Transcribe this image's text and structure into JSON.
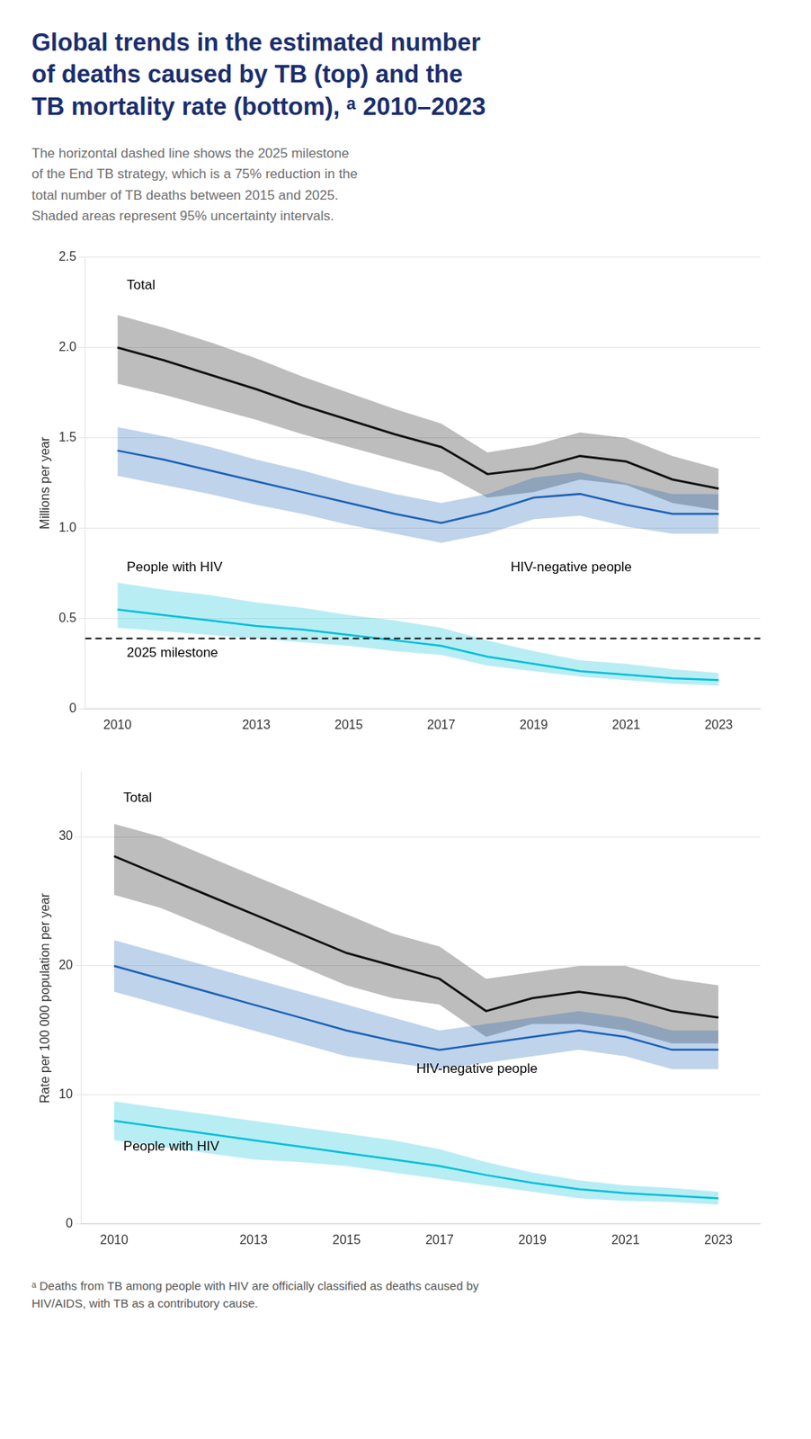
{
  "title": "Global trends in the estimated number\nof deaths caused by TB (top) and the\nTB mortality rate (bottom), ᵃ 2010–2023",
  "subtitle": "The horizontal dashed line shows the 2025 milestone\nof the End TB strategy, which is a 75% reduction in the\ntotal number of TB deaths between 2015 and 2025.\nShaded areas represent 95% uncertainty intervals.",
  "footnote": "ᵃ Deaths from TB among people with HIV are officially classified as deaths caused by\nHIV/AIDS, with TB as a contributory cause.",
  "chart_data": [
    {
      "type": "line",
      "x": [
        2010,
        2011,
        2012,
        2013,
        2014,
        2015,
        2016,
        2017,
        2018,
        2019,
        2020,
        2021,
        2022,
        2023
      ],
      "xlim": [
        2009.3,
        2023.9
      ],
      "xticks": [
        2010,
        2013,
        2015,
        2017,
        2019,
        2021,
        2023
      ],
      "ylim": [
        0,
        2.5
      ],
      "yticks": [
        0,
        0.5,
        {
          "value": 1.0,
          "label": "1.0"
        },
        1.5,
        {
          "value": 2.0,
          "label": "2.0"
        },
        2.5
      ],
      "y_label": "Millions per year",
      "grid": "y",
      "series": [
        {
          "color": "#111111",
          "values": [
            2.0,
            1.93,
            1.85,
            1.77,
            1.68,
            1.6,
            1.52,
            1.45,
            1.3,
            1.33,
            1.4,
            1.37,
            1.27,
            1.22
          ],
          "lower": [
            1.8,
            1.74,
            1.67,
            1.6,
            1.52,
            1.45,
            1.38,
            1.31,
            1.17,
            1.2,
            1.27,
            1.24,
            1.14,
            1.1
          ],
          "upper": [
            2.18,
            2.11,
            2.03,
            1.94,
            1.84,
            1.75,
            1.66,
            1.58,
            1.42,
            1.46,
            1.53,
            1.5,
            1.4,
            1.33
          ]
        },
        {
          "color": "#1a62b7",
          "values": [
            1.43,
            1.38,
            1.32,
            1.26,
            1.2,
            1.14,
            1.08,
            1.03,
            1.09,
            1.17,
            1.19,
            1.13,
            1.08,
            1.08
          ],
          "lower": [
            1.29,
            1.24,
            1.19,
            1.13,
            1.08,
            1.02,
            0.97,
            0.92,
            0.97,
            1.05,
            1.07,
            1.01,
            0.97,
            0.97
          ],
          "upper": [
            1.56,
            1.51,
            1.45,
            1.38,
            1.32,
            1.25,
            1.19,
            1.14,
            1.19,
            1.28,
            1.31,
            1.25,
            1.19,
            1.19
          ]
        },
        {
          "color": "#00c0d8",
          "values": [
            0.55,
            0.52,
            0.49,
            0.46,
            0.44,
            0.41,
            0.38,
            0.35,
            0.29,
            0.25,
            0.21,
            0.19,
            0.17,
            0.16
          ],
          "lower": [
            0.45,
            0.43,
            0.41,
            0.39,
            0.37,
            0.35,
            0.32,
            0.3,
            0.24,
            0.21,
            0.18,
            0.16,
            0.14,
            0.13
          ],
          "upper": [
            0.7,
            0.66,
            0.63,
            0.59,
            0.56,
            0.52,
            0.49,
            0.45,
            0.38,
            0.32,
            0.27,
            0.25,
            0.22,
            0.2
          ]
        }
      ],
      "hlines": [
        {
          "y": 0.39,
          "color": "#111111",
          "line_style": "dashed"
        }
      ],
      "annotations": [
        {
          "text": "Total",
          "x": 2010.2,
          "y": 2.38
        },
        {
          "text": "People with HIV",
          "x": 2010.2,
          "y": 0.82
        },
        {
          "text": "HIV-negative people",
          "x": 2018.5,
          "y": 0.82
        },
        {
          "text": "2025 milestone",
          "x": 2010.2,
          "y": 0.345
        }
      ]
    },
    {
      "type": "line",
      "x": [
        2010,
        2011,
        2012,
        2013,
        2014,
        2015,
        2016,
        2017,
        2018,
        2019,
        2020,
        2021,
        2022,
        2023
      ],
      "xlim": [
        2009.3,
        2023.9
      ],
      "xticks": [
        2010,
        2013,
        2015,
        2017,
        2019,
        2021,
        2023
      ],
      "ylim": [
        0,
        35
      ],
      "yticks": [
        0,
        10,
        20,
        30
      ],
      "y_label": "Rate per 100 000 population per year",
      "grid": "y",
      "series": [
        {
          "color": "#111111",
          "values": [
            28.5,
            27.0,
            25.5,
            24.0,
            22.5,
            21.0,
            20.0,
            19.0,
            16.5,
            17.5,
            18.0,
            17.5,
            16.5,
            16.0
          ],
          "lower": [
            25.5,
            24.5,
            23.0,
            21.5,
            20.0,
            18.5,
            17.5,
            17.0,
            14.5,
            15.5,
            15.5,
            15.0,
            14.0,
            14.0
          ],
          "upper": [
            31.0,
            30.0,
            28.5,
            27.0,
            25.5,
            24.0,
            22.5,
            21.5,
            19.0,
            19.5,
            20.0,
            20.0,
            19.0,
            18.5
          ]
        },
        {
          "color": "#1a62b7",
          "values": [
            20.0,
            19.0,
            18.0,
            17.0,
            16.0,
            15.0,
            14.2,
            13.5,
            14.0,
            14.5,
            15.0,
            14.5,
            13.5,
            13.5
          ],
          "lower": [
            18.0,
            17.0,
            16.0,
            15.0,
            14.0,
            13.0,
            12.5,
            12.0,
            12.5,
            13.0,
            13.5,
            13.0,
            12.0,
            12.0
          ],
          "upper": [
            22.0,
            21.0,
            20.0,
            19.0,
            18.0,
            17.0,
            16.0,
            15.0,
            15.5,
            16.0,
            16.5,
            16.0,
            15.0,
            15.0
          ]
        },
        {
          "color": "#00c0d8",
          "values": [
            8.0,
            7.5,
            7.0,
            6.5,
            6.0,
            5.5,
            5.0,
            4.5,
            3.8,
            3.2,
            2.7,
            2.4,
            2.2,
            2.0
          ],
          "lower": [
            6.5,
            6.0,
            5.5,
            5.0,
            4.8,
            4.5,
            4.0,
            3.5,
            3.0,
            2.5,
            2.0,
            1.8,
            1.7,
            1.5
          ],
          "upper": [
            9.5,
            9.0,
            8.5,
            8.0,
            7.5,
            7.0,
            6.5,
            5.8,
            4.8,
            4.0,
            3.4,
            3.0,
            2.8,
            2.5
          ]
        }
      ],
      "annotations": [
        {
          "text": "Total",
          "x": 2010.2,
          "y": 33.5
        },
        {
          "text": "HIV-negative people",
          "x": 2016.5,
          "y": 12.5
        },
        {
          "text": "People with HIV",
          "x": 2010.2,
          "y": 6.5
        }
      ]
    }
  ]
}
